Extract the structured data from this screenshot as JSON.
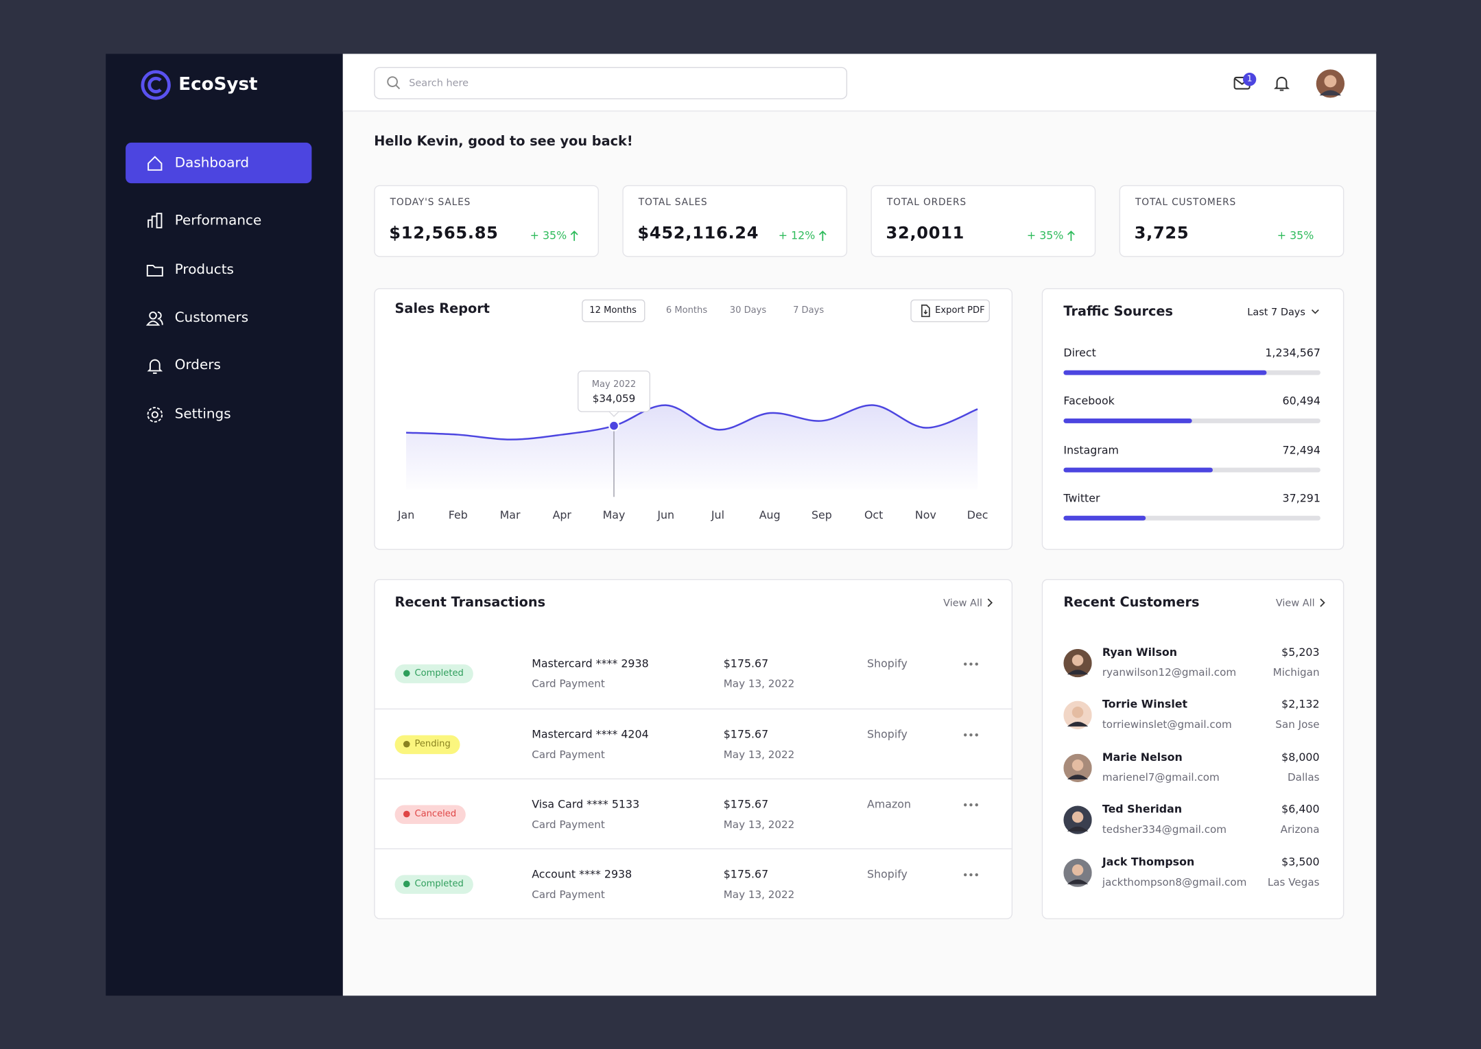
{
  "brand": "EcoSyst",
  "search_placeholder": "Search here",
  "notification_count": 1,
  "nav": [
    "Dashboard",
    "Performance",
    "Products",
    "Customers",
    "Orders",
    "Settings"
  ],
  "nav_active": 0,
  "greeting": "Hello Kevin, good to see you back!",
  "stats": [
    {
      "label": "TODAY'S SALES",
      "value": "$12,565.85",
      "change": "+ 35%",
      "trend_up": true
    },
    {
      "label": "TOTAL SALES",
      "value": "$452,116.24",
      "change": "+ 12%",
      "trend_up": true
    },
    {
      "label": "TOTAL ORDERS",
      "value": "32,0011",
      "change": "+ 35%",
      "trend_up": true
    },
    {
      "label": "TOTAL CUSTOMERS",
      "value": "3,725",
      "change": "+ 35%",
      "trend_up": false
    }
  ],
  "sales_report": {
    "ranges": [
      "12 Months",
      "6 Months",
      "30 Days",
      "7 Days"
    ],
    "export": "Export PDF"
  },
  "chart_data": {
    "type": "line",
    "title": "Sales Report",
    "categories": [
      "Jan",
      "Feb",
      "Mar",
      "Apr",
      "May",
      "Jun",
      "Jul",
      "Aug",
      "Sep",
      "Oct",
      "Nov",
      "Dec"
    ],
    "values": [
      30400,
      29300,
      26700,
      29300,
      34059,
      45100,
      32000,
      40900,
      36700,
      45100,
      33000,
      43000
    ],
    "color": "#4c45e0",
    "ylim": [
      0,
      80000
    ],
    "tooltip": {
      "index": 4,
      "label": "May 2022",
      "value_label": "$34,059"
    }
  },
  "traffic": {
    "title": "Traffic Sources",
    "period": "Last 7 Days",
    "color": "#4c45e0",
    "sources": [
      {
        "name": "Direct",
        "value": "1,234,567",
        "bar": 79
      },
      {
        "name": "Facebook",
        "value": "60,494",
        "bar": 50
      },
      {
        "name": "Instagram",
        "value": "72,494",
        "bar": 58
      },
      {
        "name": "Twitter",
        "value": "37,291",
        "bar": 32
      }
    ]
  },
  "transactions": {
    "title": "Recent Transactions",
    "view_all": "View All",
    "rows": [
      {
        "status": "Completed",
        "status_color": "#2e9e5b",
        "status_bg": "#d9f4e4",
        "method": "Mastercard **** 2938",
        "type": "Card Payment",
        "amount": "$175.67",
        "date": "May 13, 2022",
        "store": "Shopify"
      },
      {
        "status": "Pending",
        "status_color": "#8a8320",
        "status_bg": "#fbf67e",
        "method": "Mastercard **** 4204",
        "type": "Card Payment",
        "amount": "$175.67",
        "date": "May 13, 2022",
        "store": "Shopify"
      },
      {
        "status": "Canceled",
        "status_color": "#df4545",
        "status_bg": "#fcd6d6",
        "method": "Visa Card **** 5133",
        "type": "Card Payment",
        "amount": "$175.67",
        "date": "May 13, 2022",
        "store": "Amazon"
      },
      {
        "status": "Completed",
        "status_color": "#2e9e5b",
        "status_bg": "#d9f4e4",
        "method": "Account **** 2938",
        "type": "Card Payment",
        "amount": "$175.67",
        "date": "May 13, 2022",
        "store": "Shopify"
      }
    ]
  },
  "customers": {
    "title": "Recent Customers",
    "view_all": "View All",
    "rows": [
      {
        "name": "Ryan Wilson",
        "email": "ryanwilson12@gmail.com",
        "amount": "$5,203",
        "location": "Michigan"
      },
      {
        "name": "Torrie Winslet",
        "email": "torriewinslet@gmail.com",
        "amount": "$2,132",
        "location": "San Jose"
      },
      {
        "name": "Marie Nelson",
        "email": "marienel7@gmail.com",
        "amount": "$8,000",
        "location": "Dallas"
      },
      {
        "name": "Ted Sheridan",
        "email": "tedsher334@gmail.com",
        "amount": "$6,400",
        "location": "Arizona"
      },
      {
        "name": "Jack Thompson",
        "email": "jackthompson8@gmail.com",
        "amount": "$3,500",
        "location": "Las Vegas"
      }
    ]
  }
}
